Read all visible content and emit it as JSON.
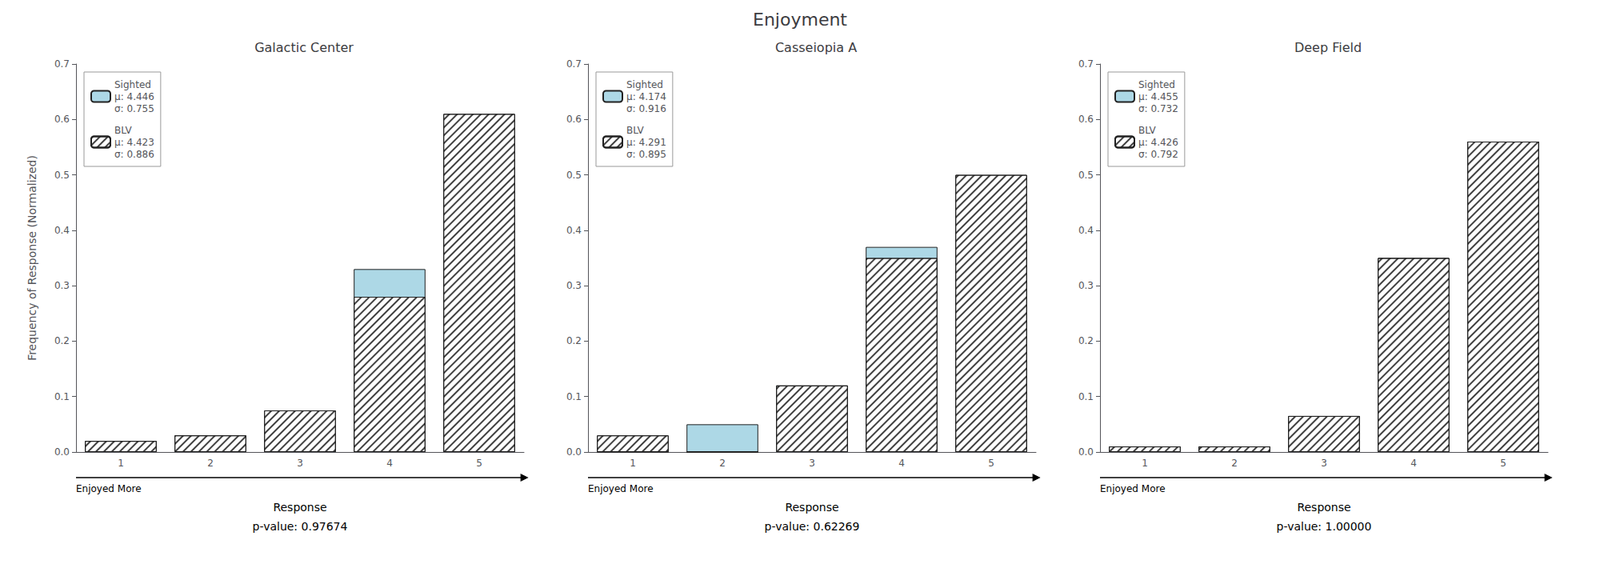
{
  "title": "Enjoyment",
  "chart_data": [
    {
      "type": "bar",
      "title": "Galactic Center",
      "categories": [
        "1",
        "2",
        "3",
        "4",
        "5"
      ],
      "series": [
        {
          "name": "Sighted\nμ: 4.446\nσ: 0.755",
          "color": "#ADD8E6",
          "values": [
            0.02,
            0.03,
            0.02,
            0.33,
            0.57
          ]
        },
        {
          "name": "BLV\nμ: 4.423\nσ: 0.886",
          "color": "white",
          "values": [
            0.02,
            0.03,
            0.075,
            0.28,
            0.61
          ]
        }
      ],
      "xlabel": "Response",
      "ylabel": "Frequency of Response (Normalized)",
      "annotations": [
        "Enjoyed More",
        "p-value: 0.97674"
      ],
      "ylim": [
        0.0,
        0.7
      ],
      "yticks": [
        {
          "value": 0.0,
          "label": "0.0"
        },
        0.1,
        0.2,
        0.3,
        0.4,
        0.5,
        0.6,
        0.7
      ],
      "grid": false,
      "legend": "upper left"
    },
    {
      "type": "bar",
      "title": "Casseiopia A",
      "categories": [
        "1",
        "2",
        "3",
        "4",
        "5"
      ],
      "series": [
        {
          "name": "Sighted\nμ: 4.174\nσ: 0.916",
          "color": "#ADD8E6",
          "values": [
            0.0,
            0.05,
            0.12,
            0.37,
            0.44
          ]
        },
        {
          "name": "BLV\nμ: 4.291\nσ: 0.895",
          "color": "white",
          "values": [
            0.03,
            0.0,
            0.12,
            0.35,
            0.5
          ]
        }
      ],
      "xlabel": "Response",
      "annotations": [
        "Enjoyed More",
        "p-value: 0.62269"
      ],
      "ylim": [
        0.0,
        0.7
      ],
      "yticks": [
        {
          "value": 0.0,
          "label": "0.0"
        },
        0.1,
        0.2,
        0.3,
        0.4,
        0.5,
        0.6,
        0.7
      ],
      "grid": false,
      "legend": "upper left"
    },
    {
      "type": "bar",
      "title": "Deep Field",
      "categories": [
        "1",
        "2",
        "3",
        "4",
        "5"
      ],
      "series": [
        {
          "name": "Sighted\nμ: 4.455\nσ: 0.732",
          "color": "#ADD8E6",
          "values": [
            0.01,
            0.01,
            0.065,
            0.35,
            0.56
          ]
        },
        {
          "name": "BLV\nμ: 4.426\nσ: 0.792",
          "color": "white",
          "values": [
            0.01,
            0.01,
            0.065,
            0.35,
            0.56
          ]
        }
      ],
      "xlabel": "Response",
      "annotations": [
        "Enjoyed More",
        "p-value: 1.00000"
      ],
      "ylim": [
        0.0,
        0.7
      ],
      "yticks": [
        {
          "value": 0.0,
          "label": "0.0"
        },
        0.1,
        0.2,
        0.3,
        0.4,
        0.5,
        0.6,
        0.7
      ],
      "grid": false,
      "legend": "upper left"
    }
  ]
}
